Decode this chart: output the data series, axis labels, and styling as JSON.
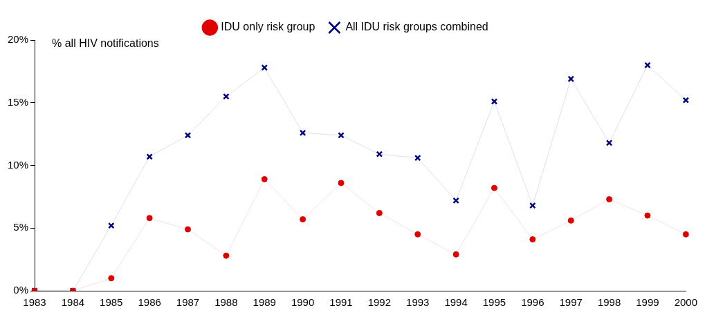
{
  "chart_data": {
    "type": "line",
    "ylabel": "% all HIV notifications",
    "categories": [
      "1983",
      "1984",
      "1985",
      "1986",
      "1987",
      "1988",
      "1989",
      "1990",
      "1991",
      "1992",
      "1993",
      "1994",
      "1995",
      "1996",
      "1997",
      "1998",
      "1999",
      "2000"
    ],
    "series": [
      {
        "name": "IDU only risk group",
        "color": "#e00000",
        "marker": "circle",
        "values": [
          0,
          0,
          1.0,
          5.8,
          4.9,
          2.8,
          8.9,
          5.7,
          8.6,
          6.2,
          4.5,
          2.9,
          8.2,
          4.1,
          5.6,
          7.3,
          6.0,
          4.5
        ]
      },
      {
        "name": "All IDU risk groups combined",
        "color": "#000080",
        "marker": "cross",
        "values": [
          0,
          0,
          5.2,
          10.7,
          12.4,
          15.5,
          17.8,
          12.6,
          12.4,
          10.9,
          10.6,
          7.2,
          15.1,
          6.8,
          16.9,
          11.8,
          18.0,
          15.2
        ]
      }
    ],
    "ylim": [
      0,
      20
    ],
    "yticks": [
      {
        "value": 0,
        "label": "0%"
      },
      {
        "value": 5,
        "label": "5%"
      },
      {
        "value": 10,
        "label": "10%"
      },
      {
        "value": 15,
        "label": "15%"
      },
      {
        "value": 20,
        "label": "20%"
      }
    ],
    "grid": false,
    "legend": "top"
  }
}
